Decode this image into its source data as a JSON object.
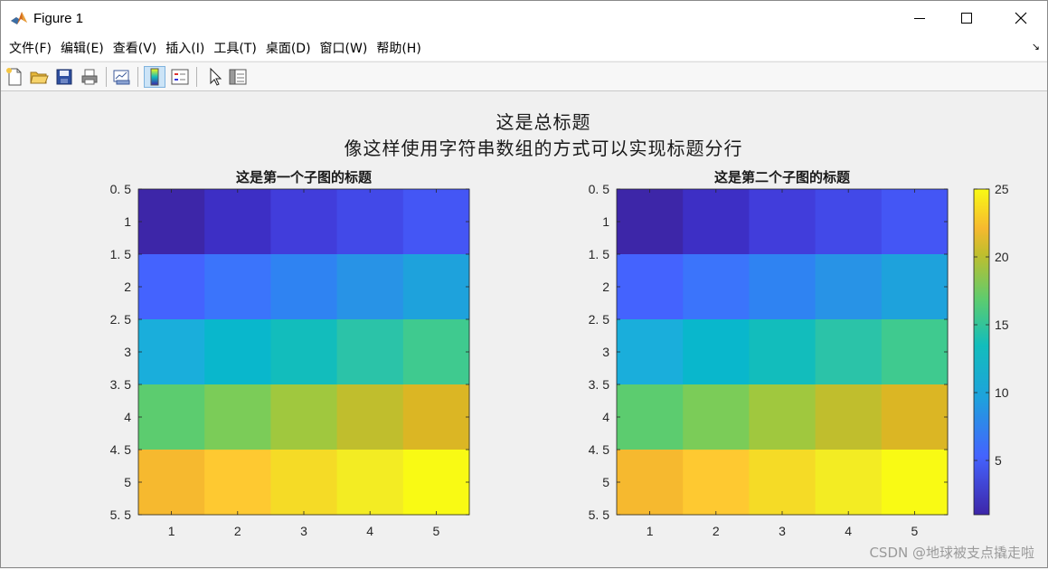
{
  "window": {
    "title": "Figure 1"
  },
  "menu": [
    "文件(F)",
    "编辑(E)",
    "查看(V)",
    "插入(I)",
    "工具(T)",
    "桌面(D)",
    "窗口(W)",
    "帮助(H)"
  ],
  "toolbar": {
    "buttons": [
      "new-figure",
      "open-file",
      "save",
      "print",
      "link-plot",
      "insert-colorbar",
      "insert-legend",
      "edit-plot",
      "open-property-inspector"
    ],
    "active": "insert-colorbar"
  },
  "figure": {
    "suptitle_line1": "这是总标题",
    "suptitle_line2": "像这样使用字符串数组的方式可以实现标题分行",
    "watermark": "CSDN @地球被支点撬走啦"
  },
  "chart_data": [
    {
      "type": "heatmap",
      "title": "这是第一个子图的标题",
      "x": [
        1,
        2,
        3,
        4,
        5
      ],
      "y": [
        1,
        2,
        3,
        4,
        5
      ],
      "values": [
        [
          1,
          2,
          3,
          4,
          5
        ],
        [
          6,
          7,
          8,
          9,
          10
        ],
        [
          11,
          12,
          13,
          14,
          15
        ],
        [
          16,
          17,
          18,
          19,
          20
        ],
        [
          21,
          22,
          23,
          24,
          25
        ]
      ],
      "xlim": [
        0.5,
        5.5
      ],
      "ylim": [
        0.5,
        5.5
      ],
      "y_reversed": true,
      "xticks": [
        "1",
        "2",
        "3",
        "4",
        "5"
      ],
      "yticks": [
        "0. 5",
        "1",
        "1. 5",
        "2",
        "2. 5",
        "3",
        "3. 5",
        "4",
        "4. 5",
        "5",
        "5. 5"
      ],
      "colormap": "parula",
      "clim": [
        1,
        25
      ]
    },
    {
      "type": "heatmap",
      "title": "这是第二个子图的标题",
      "x": [
        1,
        2,
        3,
        4,
        5
      ],
      "y": [
        1,
        2,
        3,
        4,
        5
      ],
      "values": [
        [
          1,
          2,
          3,
          4,
          5
        ],
        [
          6,
          7,
          8,
          9,
          10
        ],
        [
          11,
          12,
          13,
          14,
          15
        ],
        [
          16,
          17,
          18,
          19,
          20
        ],
        [
          21,
          22,
          23,
          24,
          25
        ]
      ],
      "xlim": [
        0.5,
        5.5
      ],
      "ylim": [
        0.5,
        5.5
      ],
      "y_reversed": true,
      "xticks": [
        "1",
        "2",
        "3",
        "4",
        "5"
      ],
      "yticks": [
        "0. 5",
        "1",
        "1. 5",
        "2",
        "2. 5",
        "3",
        "3. 5",
        "4",
        "4. 5",
        "5",
        "5. 5"
      ],
      "colormap": "parula",
      "clim": [
        1,
        25
      ],
      "colorbar": {
        "ticks": [
          5,
          10,
          15,
          20,
          25
        ],
        "range": [
          1,
          25
        ]
      }
    }
  ],
  "colors": {
    "cells": [
      "#3d26a8",
      "#3d2fc5",
      "#413ddb",
      "#4249e8",
      "#4456f5",
      "#4463fe",
      "#3b74fb",
      "#2f83f2",
      "#2893e6",
      "#1ea2dc",
      "#1aaedb",
      "#09b7cc",
      "#12bdbc",
      "#2bc3a8",
      "#3fca8f",
      "#5ccc6f",
      "#7bcc58",
      "#a0c83e",
      "#c0be2d",
      "#dbb624",
      "#f6b92f",
      "#fec931",
      "#f5db26",
      "#f3ec23",
      "#f9fa14"
    ]
  }
}
